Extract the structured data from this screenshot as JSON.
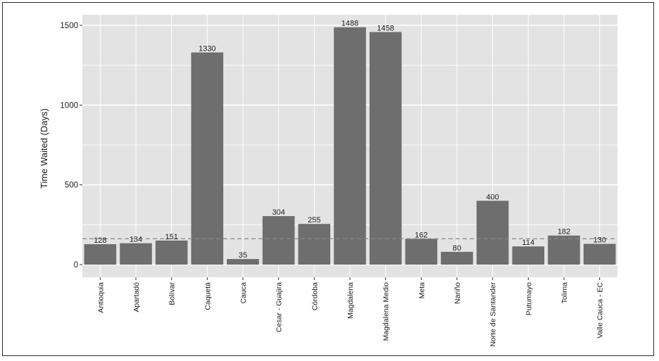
{
  "chart_data": {
    "type": "bar",
    "title": "",
    "xlabel": "",
    "ylabel": "Time Waited (Days)",
    "ylim": [
      0,
      1500
    ],
    "yticks": [
      0,
      500,
      1000,
      1500
    ],
    "grid": true,
    "categories": [
      "Antioquia",
      "Apartadó",
      "Bolívar",
      "Caquetá",
      "Cauca",
      "Cesar - Guajira",
      "Córdoba",
      "Magdalena",
      "Magdalena Medio",
      "Meta",
      "Nariño",
      "Norte de Santander",
      "Putumayo",
      "Tolima",
      "Valle Cauca - EC"
    ],
    "values": [
      128,
      134,
      151,
      1330,
      35,
      304,
      255,
      1488,
      1458,
      162,
      80,
      400,
      114,
      182,
      130
    ],
    "data_labels": [
      "128",
      "134",
      "151",
      "1330",
      "35",
      "304",
      "255",
      "1488",
      "1458",
      "162",
      "80",
      "400",
      "114",
      "182",
      "130"
    ],
    "reference_line": {
      "value": 162,
      "style": "dashed"
    },
    "colors": {
      "panel": "#e3e3e3",
      "bar": "#6e6e6e",
      "grid": "#ffffff",
      "reference_line": "#8a8a8a"
    }
  }
}
